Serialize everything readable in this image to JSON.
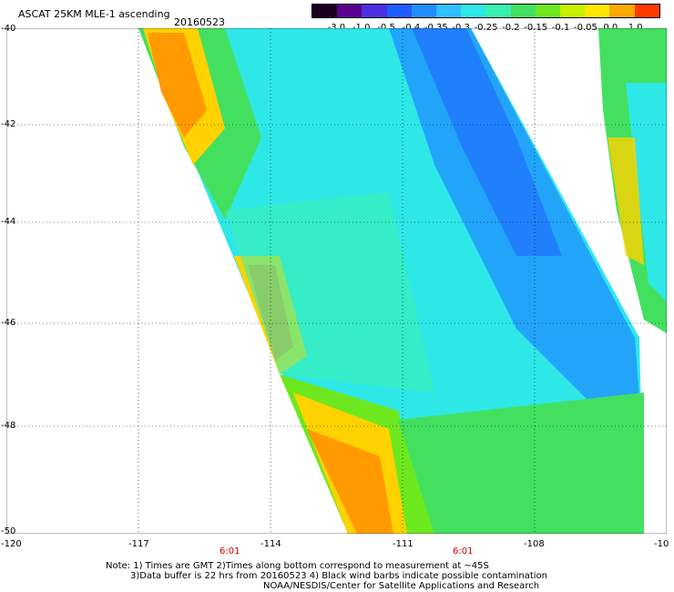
{
  "header": {
    "title": "ASCAT 25KM MLE-1 ascending",
    "date": "20160523"
  },
  "colorbar": {
    "labels": [
      "-3.0",
      "-1.0",
      "-0.5",
      "-0.4",
      "-0.35",
      "-0.3",
      "-0.25",
      "-0.2",
      "-0.15",
      "-0.1",
      "-0.05",
      "0.0",
      "1.0"
    ],
    "colors": [
      "#1a0020",
      "#5a0090",
      "#4b2fe0",
      "#1e5cff",
      "#1f8fff",
      "#2fbfff",
      "#2ee8e8",
      "#3af0b0",
      "#43e060",
      "#6ee81e",
      "#c8f000",
      "#ffe800",
      "#ffa800",
      "#ff3a00"
    ]
  },
  "axes": {
    "x_labels": [
      "-120",
      "-117",
      "-114",
      "-111",
      "-108",
      "-10"
    ],
    "y_labels": [
      "-40",
      "-42",
      "-44",
      "-46",
      "-48",
      "-50"
    ]
  },
  "times": [
    "6:01",
    "6:01"
  ],
  "notes": {
    "line1": "Note: 1) Times are GMT 2)Times along bottom correspond to measurement at ~45S",
    "line2": "3)Data buffer is 22 hrs from 20160523 4) Black wind barbs indicate possible contamination",
    "line3": "NOAA/NESDIS/Center for Satellite Applications and Research"
  }
}
